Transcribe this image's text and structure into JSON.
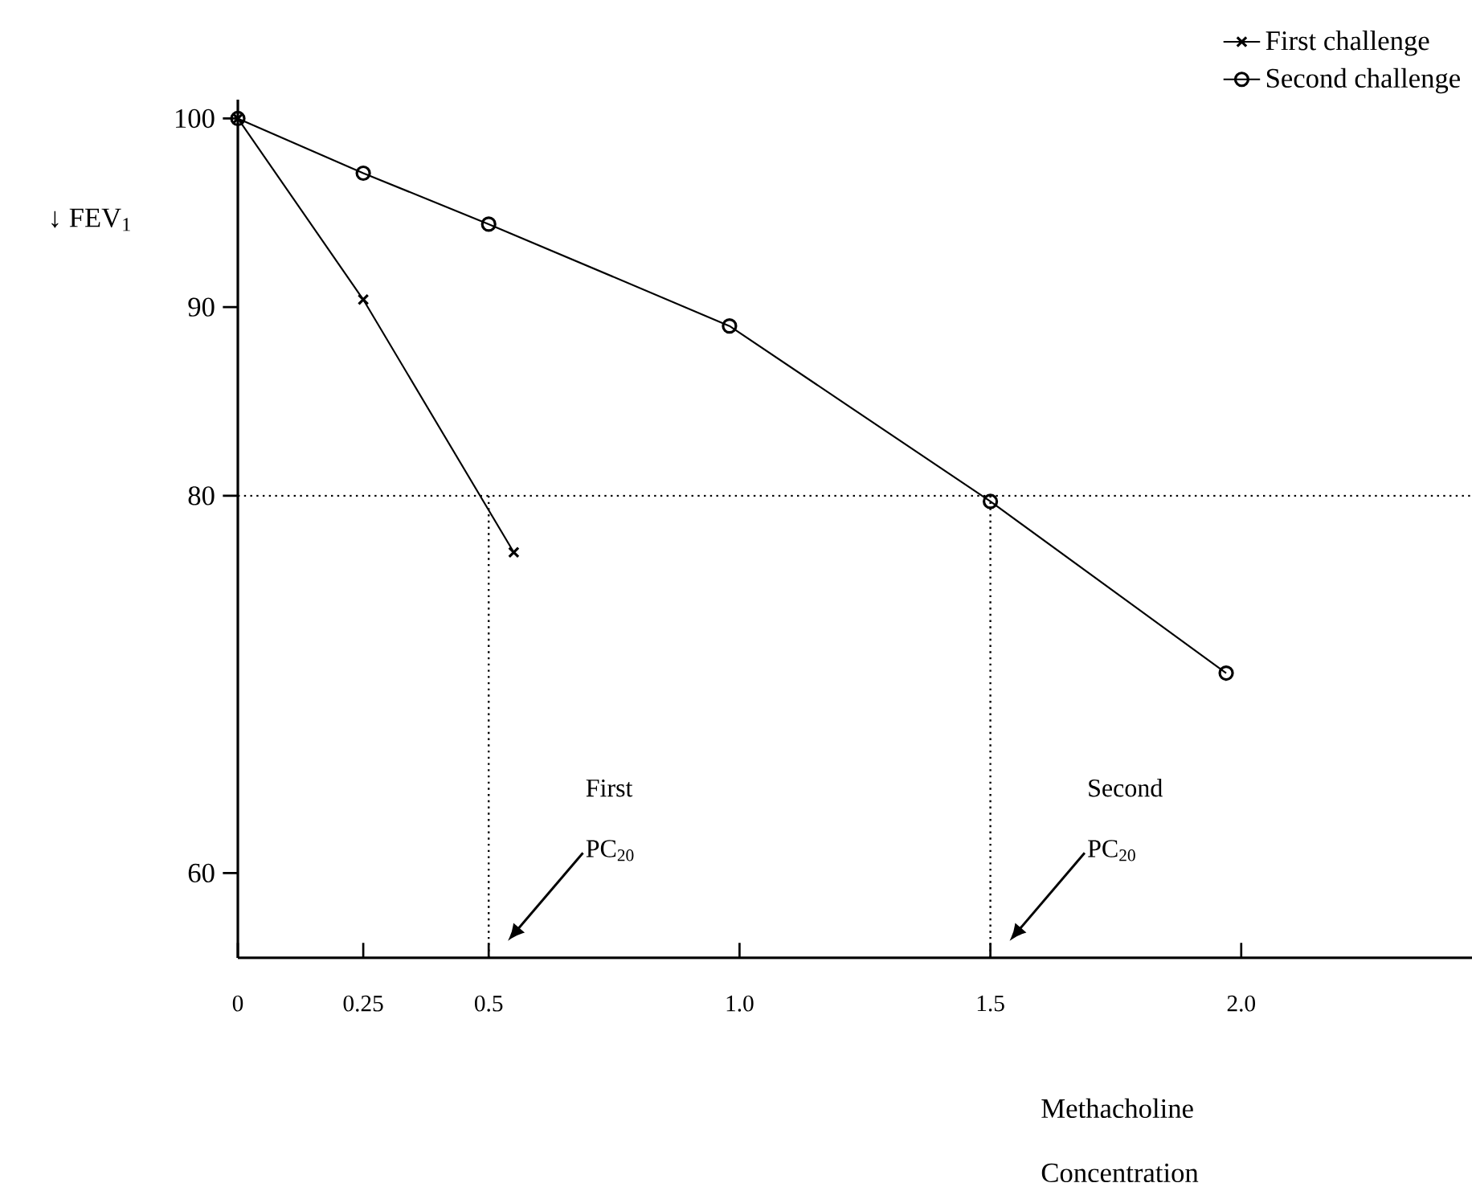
{
  "chart_data": {
    "type": "line",
    "xlabel": "Methacholine Concentration",
    "ylabel": "↓ FEV$_{1}$",
    "xlim": [
      0,
      2.46
    ],
    "ylim": [
      55.5,
      101
    ],
    "xticks": [
      0,
      0.25,
      0.5,
      {
        "value": 1,
        "label": "1.0"
      },
      1.5,
      {
        "value": 2,
        "label": "2.0"
      }
    ],
    "yticks": [
      60,
      80,
      90,
      100
    ],
    "series": [
      {
        "name": "First challenge",
        "color": "#000000",
        "marker": "cross",
        "x": [
          0,
          0.25,
          0.55
        ],
        "values": [
          100,
          90.4,
          77.0
        ]
      },
      {
        "name": "Second challenge",
        "color": "#000000",
        "marker": "circle",
        "x": [
          0,
          0.25,
          0.5,
          0.98,
          1.5,
          1.97
        ],
        "values": [
          100,
          97.1,
          94.4,
          89.0,
          79.7,
          70.6
        ]
      }
    ],
    "ref_lines": [
      {
        "axis": "y",
        "value": 80,
        "line_style": "dotted"
      },
      {
        "axis": "x",
        "value": 0.5,
        "line_style": "dotted"
      },
      {
        "axis": "x",
        "value": 1.5,
        "line_style": "dotted"
      }
    ],
    "annotations": [
      "First",
      "PC$_{20}$",
      "Second",
      "PC$_{20}$"
    ],
    "legend": "top right",
    "grid": false,
    "line_style": "solid"
  }
}
